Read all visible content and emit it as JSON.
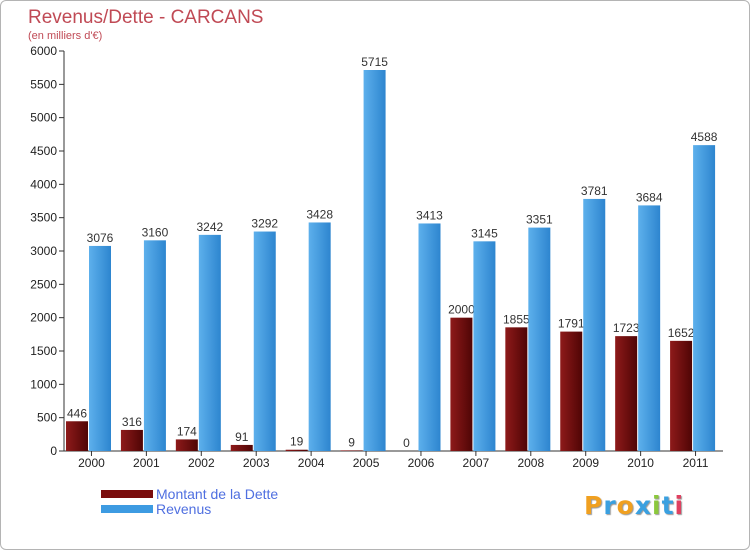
{
  "header": {
    "title": "Revenus/Dette - CARCANS",
    "subtitle": "(en milliers d'€)"
  },
  "legend": {
    "items": [
      {
        "label": "Montant de la Dette",
        "color": "#7a0c0c"
      },
      {
        "label": "Revenus",
        "color": "#3d9be2"
      }
    ]
  },
  "logo": {
    "text": "Proxiti",
    "letter_colors": [
      "#f0a020",
      "#3aa0e0",
      "#f0a020",
      "#3aa0e0",
      "#8cc83c",
      "#3aa0e0",
      "#e04060"
    ]
  },
  "chart_data": {
    "type": "bar",
    "title": "Revenus/Dette - CARCANS",
    "subtitle": "(en milliers d'€)",
    "categories": [
      "2000",
      "2001",
      "2002",
      "2003",
      "2004",
      "2005",
      "2006",
      "2007",
      "2008",
      "2009",
      "2010",
      "2011"
    ],
    "series": [
      {
        "name": "Montant de la Dette",
        "color": "#7a0c0c",
        "values": [
          446,
          316,
          174,
          91,
          19,
          9,
          0,
          2000,
          1855,
          1791,
          1723,
          1652
        ],
        "labels": [
          "446",
          "316",
          "174",
          "91",
          "19",
          "9",
          "0",
          "2000",
          "1855",
          "1791",
          "1723",
          "1652"
        ]
      },
      {
        "name": "Revenus",
        "color": "#3d9be2",
        "values": [
          3076,
          3160,
          3242,
          3292,
          3428,
          5715,
          3413,
          3145,
          3351,
          3781,
          3684,
          4588
        ],
        "labels": [
          "3076",
          "3160",
          "3242",
          "3292",
          "3428",
          "5715",
          "3413",
          "3145",
          "3351",
          "3781",
          "3684",
          "4588"
        ]
      }
    ],
    "yticks": [
      0,
      500,
      1000,
      1500,
      2000,
      2500,
      3000,
      3500,
      4000,
      4500,
      5000,
      5500,
      6000
    ],
    "ylim": [
      0,
      6000
    ],
    "grid": false,
    "legend_position": "bottom-left"
  }
}
